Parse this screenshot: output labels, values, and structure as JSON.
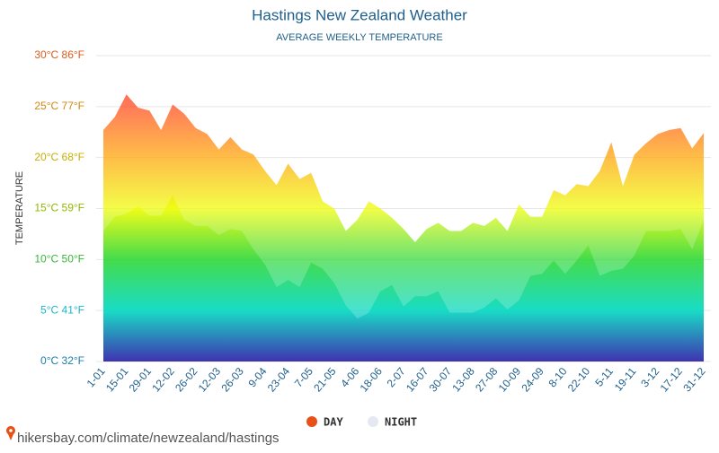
{
  "chart_data": {
    "type": "area",
    "title": "Hastings New Zealand Weather",
    "subtitle": "AVERAGE WEEKLY TEMPERATURE",
    "y_label": "TEMPERATURE",
    "source": "hikersbay.com/climate/newzealand/hastings",
    "categories": [
      "1-01",
      null,
      "15-01",
      null,
      "29-01",
      null,
      "12-02",
      null,
      "26-02",
      null,
      "12-03",
      null,
      "26-03",
      null,
      "9-04",
      null,
      "23-04",
      null,
      "7-05",
      null,
      "21-05",
      null,
      "4-06",
      null,
      "18-06",
      null,
      "2-07",
      null,
      "16-07",
      null,
      "30-07",
      null,
      "13-08",
      null,
      "27-08",
      null,
      "10-09",
      null,
      "24-09",
      null,
      "8-10",
      null,
      "22-10",
      null,
      "5-11",
      null,
      "19-11",
      null,
      "3-12",
      null,
      "17-12",
      null,
      "31-12"
    ],
    "series": [
      {
        "name": "DAY",
        "color": "#e8501a",
        "values": [
          22.7,
          24.0,
          26.2,
          24.9,
          24.6,
          22.7,
          25.2,
          24.3,
          22.9,
          22.3,
          20.8,
          22.0,
          20.8,
          20.3,
          18.7,
          17.3,
          19.4,
          17.9,
          18.5,
          15.7,
          15.0,
          12.8,
          13.9,
          15.7,
          15.0,
          14.1,
          13.0,
          11.7,
          13.0,
          13.6,
          12.8,
          12.8,
          13.6,
          13.3,
          14.1,
          12.8,
          15.4,
          14.2,
          14.2,
          16.8,
          16.3,
          17.4,
          17.2,
          18.7,
          21.5,
          17.2,
          20.3,
          21.4,
          22.3,
          22.7,
          22.9,
          20.9,
          22.4
        ]
      },
      {
        "name": "NIGHT",
        "color": "#e4e8f0",
        "values": [
          12.8,
          14.2,
          14.5,
          15.2,
          14.3,
          14.3,
          16.3,
          13.9,
          13.3,
          13.3,
          12.4,
          13.0,
          12.8,
          11.0,
          9.5,
          7.3,
          8.0,
          7.3,
          9.7,
          9.1,
          7.7,
          5.5,
          4.2,
          4.8,
          6.9,
          7.5,
          5.4,
          6.4,
          6.4,
          6.9,
          4.8,
          4.8,
          4.8,
          5.3,
          6.2,
          5.1,
          6.0,
          8.4,
          8.6,
          9.9,
          8.6,
          9.9,
          11.4,
          8.4,
          8.9,
          9.1,
          10.4,
          12.8,
          12.8,
          12.8,
          13.0,
          11.0,
          13.9
        ]
      }
    ],
    "gradient_colors": [
      "#2a1ca8",
      "#00d8c0",
      "#30d838",
      "#eefc00",
      "#ffa400",
      "#ff4818",
      "#ff0000"
    ],
    "ylim": [
      0,
      30
    ],
    "yticks": [
      {
        "value": 0,
        "label": "0°C 32°F"
      },
      {
        "value": 5,
        "label": "5°C 41°F"
      },
      {
        "value": 10,
        "label": "10°C 50°F"
      },
      {
        "value": 15,
        "label": "15°C 59°F"
      },
      {
        "value": 20,
        "label": "20°C 68°F"
      },
      {
        "value": 25,
        "label": "25°C 77°F"
      },
      {
        "value": 30,
        "label": "30°C 86°F"
      }
    ],
    "ytick_colors": [
      "#1a7fa8",
      "#18b8c8",
      "#38b838",
      "#90b800",
      "#c8b000",
      "#d08810",
      "#e05a18"
    ],
    "grid": true
  }
}
